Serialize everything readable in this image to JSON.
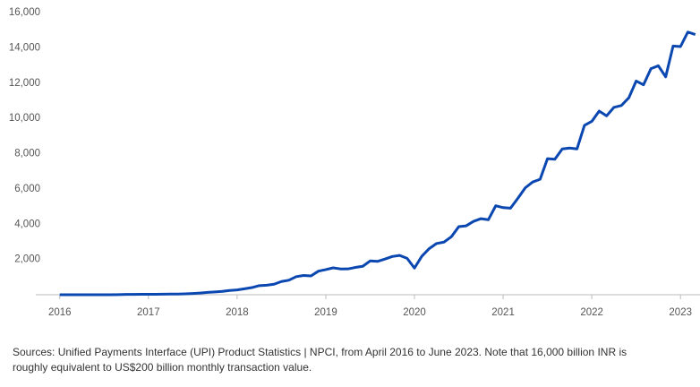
{
  "chart_data": {
    "type": "line",
    "source": "Sources: Unified Payments Interface (UPI) Product Statistics | NPCI, from April 2016 to June 2023. Note that 16,000 billion INR is roughly equivalent to US$200 billion monthly transaction value.",
    "x": [
      2016,
      2016.083,
      2016.167,
      2016.25,
      2016.333,
      2016.417,
      2016.5,
      2016.583,
      2016.667,
      2016.75,
      2016.833,
      2016.917,
      2017,
      2017.083,
      2017.167,
      2017.25,
      2017.333,
      2017.417,
      2017.5,
      2017.583,
      2017.667,
      2017.75,
      2017.833,
      2017.917,
      2018,
      2018.083,
      2018.167,
      2018.25,
      2018.333,
      2018.417,
      2018.5,
      2018.583,
      2018.667,
      2018.75,
      2018.833,
      2018.917,
      2019,
      2019.083,
      2019.167,
      2019.25,
      2019.333,
      2019.417,
      2019.5,
      2019.583,
      2019.667,
      2019.75,
      2019.833,
      2019.917,
      2020,
      2020.083,
      2020.167,
      2020.25,
      2020.333,
      2020.417,
      2020.5,
      2020.583,
      2020.667,
      2020.75,
      2020.833,
      2020.917,
      2021,
      2021.083,
      2021.167,
      2021.25,
      2021.333,
      2021.417,
      2021.5,
      2021.583,
      2021.667,
      2021.75,
      2021.833,
      2021.917,
      2022,
      2022.083,
      2022.167,
      2022.25,
      2022.333,
      2022.417,
      2022.5,
      2022.583,
      2022.667,
      2022.75,
      2022.833,
      2022.917,
      2023,
      2023.083,
      2023.167
    ],
    "series": [
      {
        "color": "#0b47b0",
        "values": [
          0,
          0,
          0,
          0,
          0,
          0,
          0,
          1,
          7,
          17,
          19,
          24,
          23,
          27,
          31,
          35,
          40,
          52,
          70,
          96,
          131,
          157,
          191,
          242,
          271,
          336,
          405,
          515,
          541,
          598,
          749,
          822,
          1025,
          1094,
          1066,
          1337,
          1424,
          1525,
          1463,
          1464,
          1547,
          1612,
          1915,
          1891,
          2022,
          2168,
          2227,
          2065,
          1511,
          2181,
          2618,
          2906,
          2983,
          3292,
          3862,
          3907,
          4163,
          4313,
          4253,
          5047,
          4938,
          4907,
          5474,
          6063,
          6392,
          6547,
          7713,
          7684,
          8268,
          8317,
          8269,
          9604,
          9831,
          10415,
          10142,
          10627,
          10727,
          11163,
          12116,
          11903,
          12820,
          12982,
          12355,
          14104,
          14070,
          14895,
          14751
        ]
      }
    ],
    "xlim": [
      2015.73,
      2023.22
    ],
    "xticks": [
      2016,
      2017,
      2018,
      2019,
      2020,
      2021,
      2022,
      2023
    ],
    "ylim": [
      0,
      16000
    ],
    "yticks": [
      {
        "value": 0,
        "label": "-"
      },
      {
        "value": 2000,
        "label": "2,000"
      },
      {
        "value": 4000,
        "label": "4,000"
      },
      {
        "value": 6000,
        "label": "6,000"
      },
      {
        "value": 8000,
        "label": "8,000"
      },
      {
        "value": 10000,
        "label": "10,000"
      },
      {
        "value": 12000,
        "label": "12,000"
      },
      {
        "value": 14000,
        "label": "14,000"
      },
      {
        "value": 16000,
        "label": "16,000"
      }
    ],
    "grid": false
  }
}
